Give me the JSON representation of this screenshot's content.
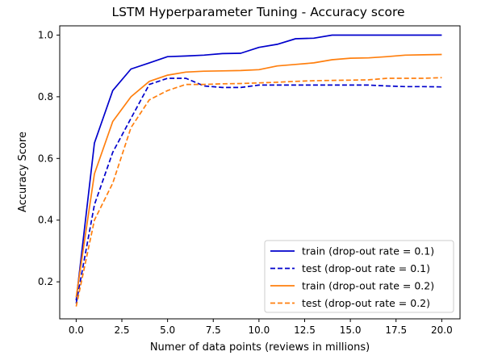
{
  "chart_data": {
    "type": "line",
    "title": "LSTM Hyperparameter Tuning - Accuracy score",
    "xlabel": "Numer of data points (reviews in millions)",
    "ylabel": "Accuracy Score",
    "xlim": [
      -0.9,
      21.0
    ],
    "ylim": [
      0.08,
      1.03
    ],
    "xticks": [
      "0.0",
      "2.5",
      "5.0",
      "7.5",
      "10.0",
      "12.5",
      "15.0",
      "17.5",
      "20.0"
    ],
    "yticks": [
      "0.2",
      "0.4",
      "0.6",
      "0.8",
      "1.0"
    ],
    "grid": false,
    "legend_position": "lower-right",
    "x": [
      0,
      1,
      2,
      3,
      4,
      5,
      6,
      7,
      8,
      9,
      10,
      11,
      12,
      13,
      14,
      15,
      16,
      17,
      18,
      19,
      20
    ],
    "series": [
      {
        "name": "train (drop-out rate = 0.1)",
        "color": "#0000cc",
        "style": "solid",
        "values": [
          0.14,
          0.65,
          0.82,
          0.89,
          0.91,
          0.93,
          0.932,
          0.935,
          0.94,
          0.941,
          0.96,
          0.97,
          0.988,
          0.99,
          1.0,
          1.0,
          1.0,
          1.0,
          1.0,
          1.0,
          1.0
        ]
      },
      {
        "name": "test (drop-out rate = 0.1)",
        "color": "#0000cc",
        "style": "dashed",
        "values": [
          0.13,
          0.45,
          0.62,
          0.73,
          0.84,
          0.86,
          0.86,
          0.835,
          0.83,
          0.83,
          0.838,
          0.838,
          0.838,
          0.838,
          0.838,
          0.838,
          0.838,
          0.835,
          0.833,
          0.833,
          0.832
        ]
      },
      {
        "name": "train (drop-out rate = 0.2)",
        "color": "#ff7f0e",
        "style": "solid",
        "values": [
          0.15,
          0.55,
          0.72,
          0.8,
          0.85,
          0.87,
          0.88,
          0.883,
          0.884,
          0.885,
          0.888,
          0.9,
          0.905,
          0.91,
          0.92,
          0.925,
          0.926,
          0.93,
          0.935,
          0.936,
          0.937
        ]
      },
      {
        "name": "test (drop-out rate = 0.2)",
        "color": "#ff7f0e",
        "style": "dashed",
        "values": [
          0.12,
          0.4,
          0.52,
          0.7,
          0.79,
          0.82,
          0.84,
          0.84,
          0.842,
          0.843,
          0.845,
          0.847,
          0.85,
          0.852,
          0.853,
          0.854,
          0.855,
          0.86,
          0.86,
          0.86,
          0.862
        ]
      }
    ]
  }
}
